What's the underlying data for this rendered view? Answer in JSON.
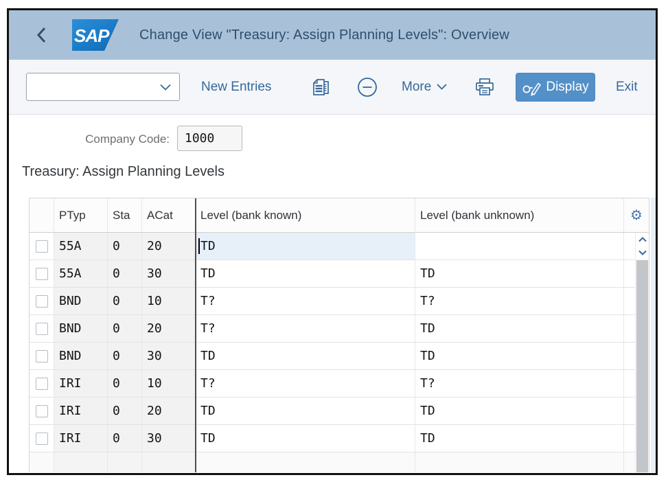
{
  "header": {
    "title": "Change View \"Treasury: Assign Planning Levels\": Overview",
    "logo_text": "SAP"
  },
  "toolbar": {
    "combo_value": "",
    "new_entries_label": "New Entries",
    "more_label": "More",
    "display_label": "Display",
    "exit_label": "Exit"
  },
  "content": {
    "company_code_label": "Company Code:",
    "company_code_value": "1000",
    "section_title": "Treasury: Assign Planning Levels"
  },
  "table": {
    "columns": [
      "",
      "PTyp",
      "Sta",
      "ACat",
      "Level (bank known)",
      "Level (bank unknown)"
    ],
    "rows": [
      {
        "ptyp": "55A",
        "sta": "0",
        "acat": "20",
        "level_known": "TD",
        "level_unknown": "",
        "selected": true
      },
      {
        "ptyp": "55A",
        "sta": "0",
        "acat": "30",
        "level_known": "TD",
        "level_unknown": "TD"
      },
      {
        "ptyp": "BND",
        "sta": "0",
        "acat": "10",
        "level_known": "T?",
        "level_unknown": "T?"
      },
      {
        "ptyp": "BND",
        "sta": "0",
        "acat": "20",
        "level_known": "T?",
        "level_unknown": "TD"
      },
      {
        "ptyp": "BND",
        "sta": "0",
        "acat": "30",
        "level_known": "TD",
        "level_unknown": "TD"
      },
      {
        "ptyp": "IRI",
        "sta": "0",
        "acat": "10",
        "level_known": "T?",
        "level_unknown": "T?"
      },
      {
        "ptyp": "IRI",
        "sta": "0",
        "acat": "20",
        "level_known": "TD",
        "level_unknown": "TD"
      },
      {
        "ptyp": "IRI",
        "sta": "0",
        "acat": "30",
        "level_known": "TD",
        "level_unknown": "TD"
      }
    ]
  },
  "icons": {
    "back": "back-chevron",
    "copy": "copy-entries",
    "remove": "minus-circle",
    "more_chevron": "chevron-down",
    "print": "printer",
    "display": "glasses-pencil",
    "gear": "⚙",
    "scroll_up": "chevron-up",
    "scroll_down": "chevron-down"
  },
  "colors": {
    "header_bg": "#a9c1d8",
    "accent_blue": "#35689a",
    "logo_blue": "#0e68b6",
    "display_button_bg": "#5490c8",
    "selection_bg": "#e7f0f9",
    "key_column_bg": "#f2f2f2"
  }
}
